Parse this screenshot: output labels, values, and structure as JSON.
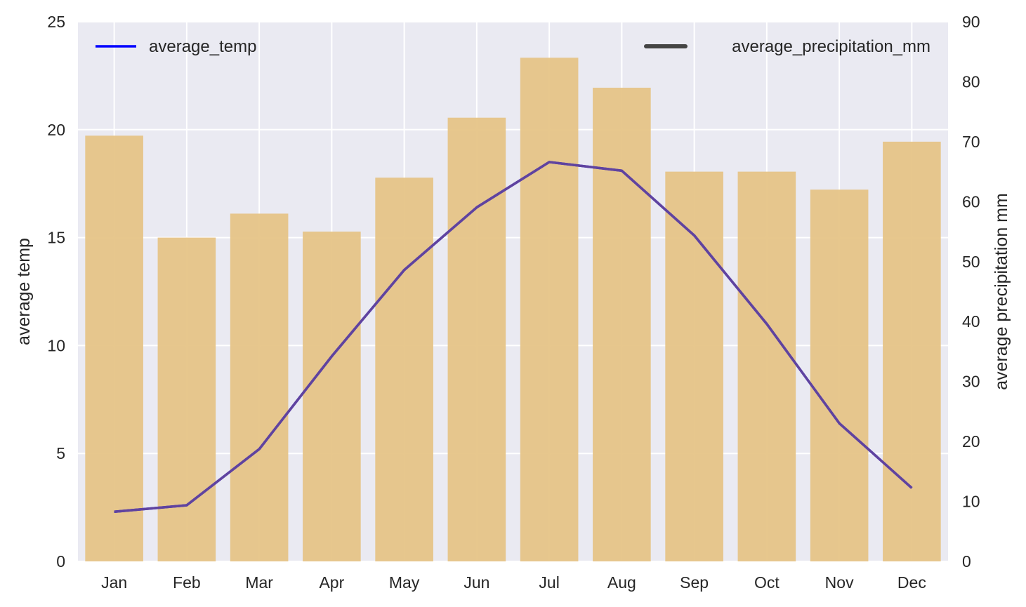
{
  "chart_data": {
    "type": "bar+line",
    "categories": [
      "Jan",
      "Feb",
      "Mar",
      "Apr",
      "May",
      "Jun",
      "Jul",
      "Aug",
      "Sep",
      "Oct",
      "Nov",
      "Dec"
    ],
    "series": [
      {
        "name": "average_temp",
        "type": "line",
        "axis": "left",
        "values": [
          2.3,
          2.6,
          5.2,
          9.5,
          13.5,
          16.4,
          18.5,
          18.1,
          15.1,
          11.0,
          6.4,
          3.4
        ],
        "color": "#0000ff",
        "overlay_color": "#6a4a94"
      },
      {
        "name": "average_precipitation_mm",
        "type": "bar",
        "axis": "right",
        "values": [
          71,
          54,
          58,
          55,
          64,
          74,
          84,
          79,
          65,
          65,
          62,
          70
        ],
        "color": "#e6c487",
        "legend_color": "#444444"
      }
    ],
    "ylabel_left": "average temp",
    "ylabel_right": "average precipitation mm",
    "ylim_left": [
      0,
      25
    ],
    "yticks_left": [
      "0",
      "5",
      "10",
      "15",
      "20",
      "25"
    ],
    "ylim_right": [
      0,
      90
    ],
    "yticks_right": [
      "0",
      "10",
      "20",
      "30",
      "40",
      "50",
      "60",
      "70",
      "80",
      "90"
    ],
    "grid": true,
    "background": "#eaeaf2",
    "legend_left_placement": "top-left",
    "legend_right_placement": "top-right"
  }
}
